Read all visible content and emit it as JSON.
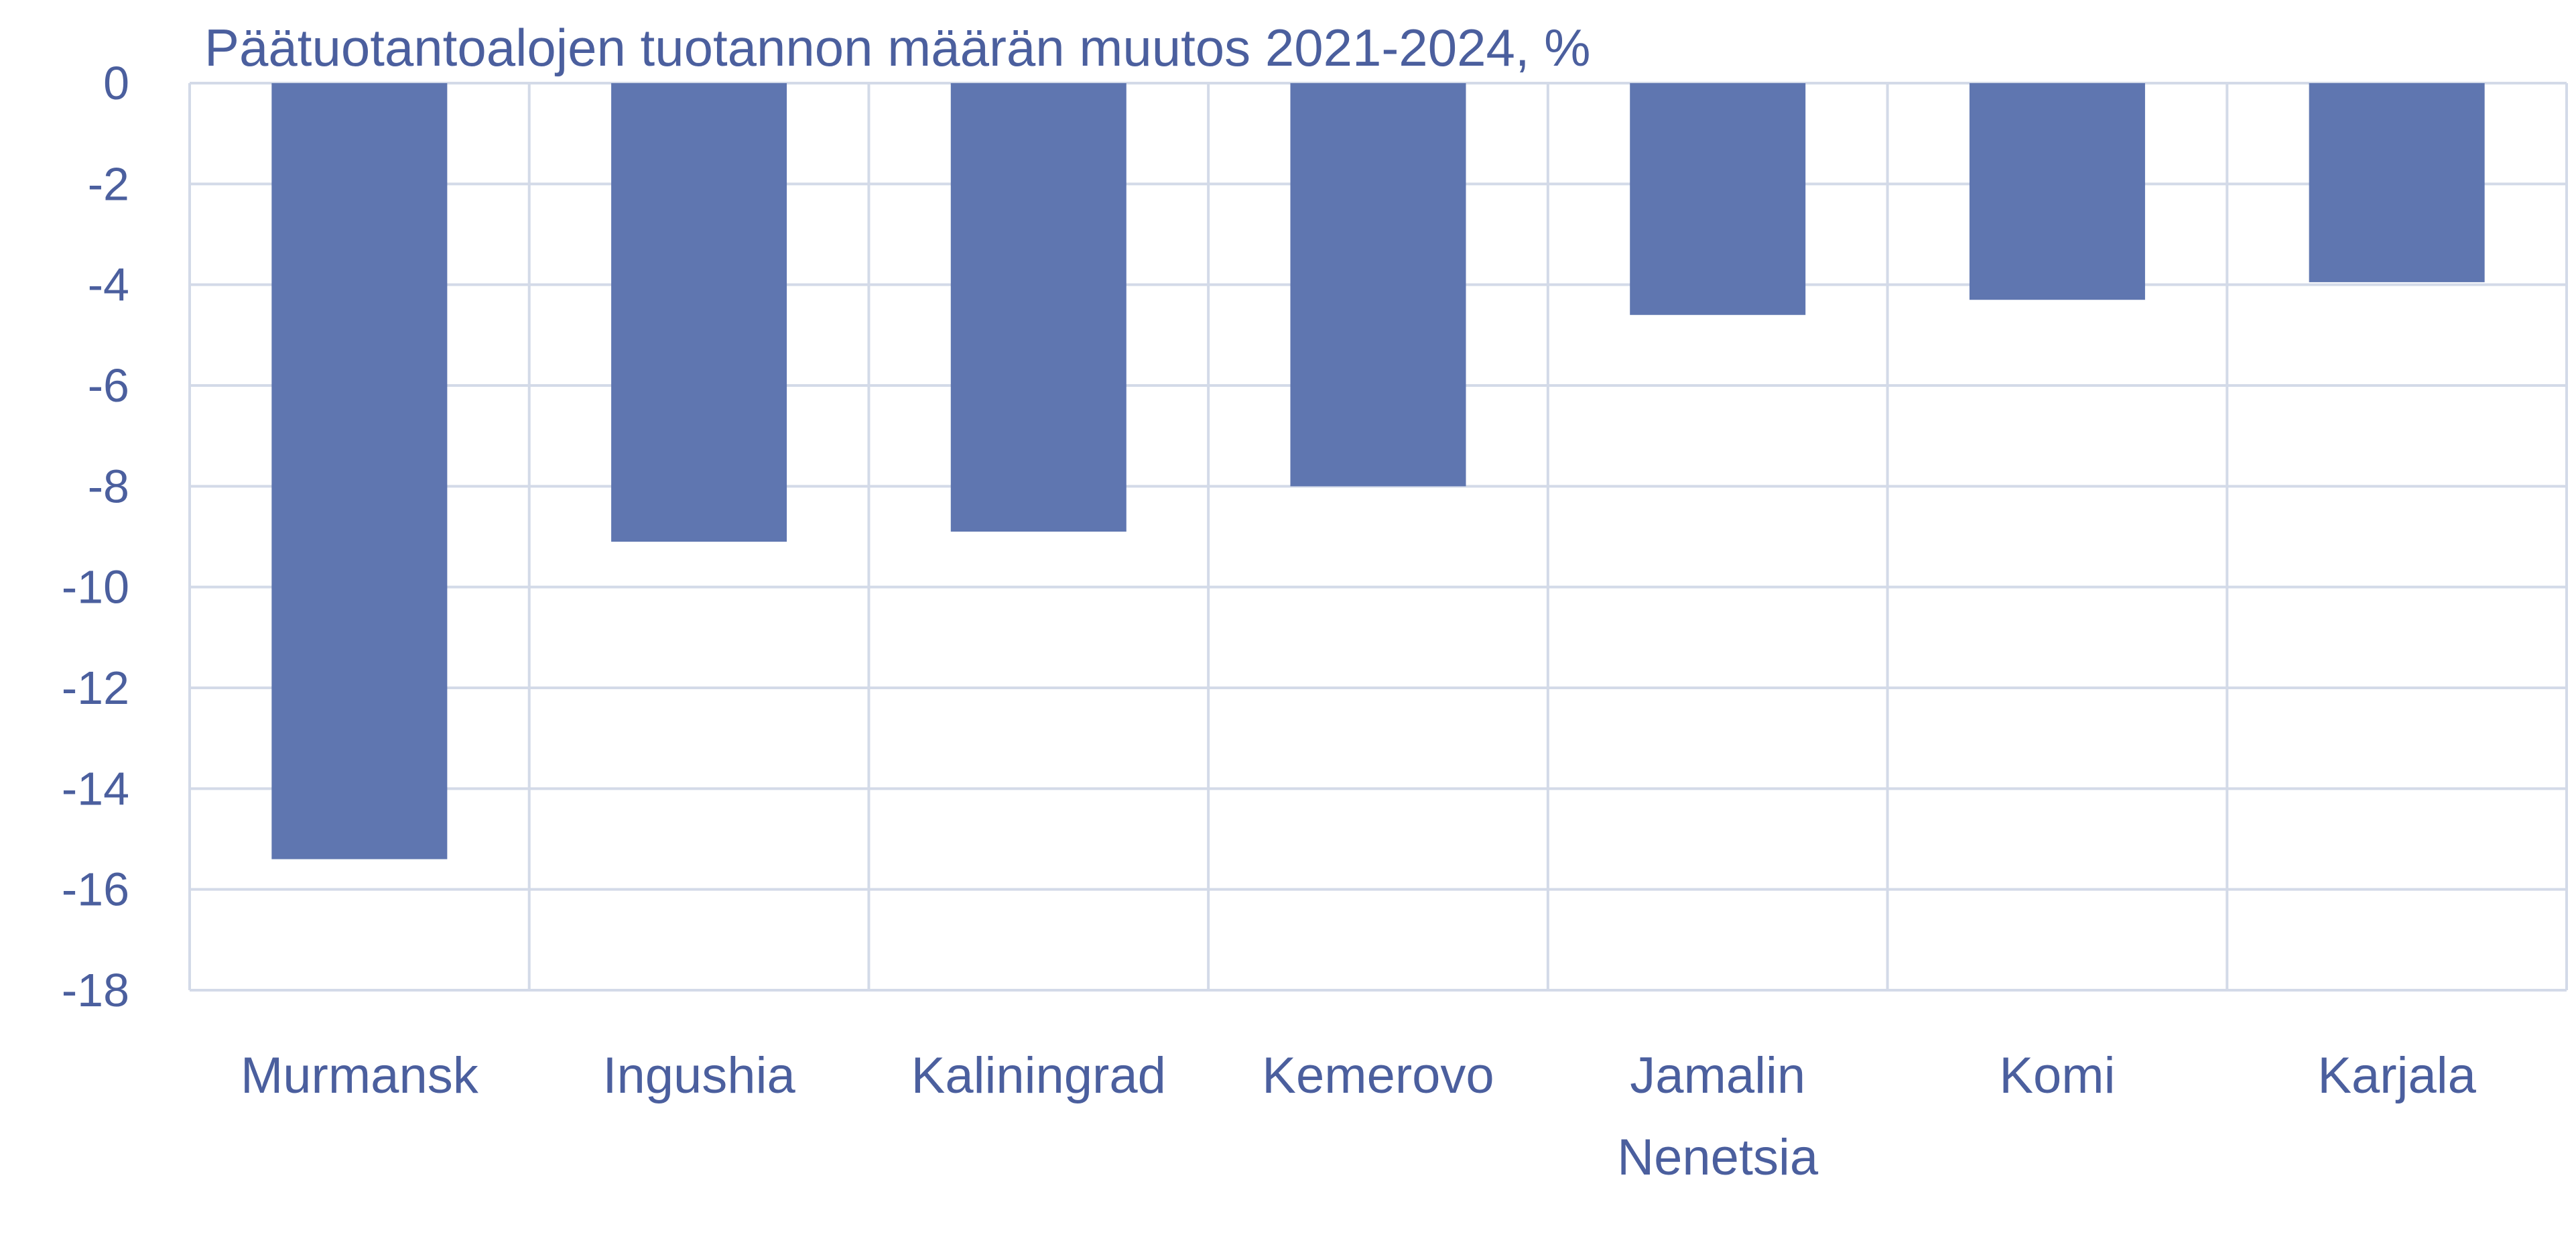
{
  "chart_data": {
    "type": "bar",
    "title": "Päätuotantoalojen tuotannon määrän muutos 2021-2024, %",
    "categories": [
      [
        "Murmansk"
      ],
      [
        "Ingushia"
      ],
      [
        "Kaliningrad"
      ],
      [
        "Kemerovo"
      ],
      [
        "Jamalin",
        "Nenetsia"
      ],
      [
        "Komi"
      ],
      [
        "Karjala"
      ]
    ],
    "values": [
      -15.4,
      -9.1,
      -8.9,
      -8.0,
      -4.6,
      -4.3,
      -3.95
    ],
    "ylim": [
      -18,
      0
    ],
    "yticks": [
      0,
      -2,
      -4,
      -6,
      -8,
      -10,
      -12,
      -14,
      -16,
      -18
    ],
    "grid": true,
    "legend": "none",
    "colors": {
      "bar": "#5f76b0",
      "text": "#4b5f9e",
      "grid": "#d3dae8",
      "axis": "#c9d1e1"
    }
  }
}
